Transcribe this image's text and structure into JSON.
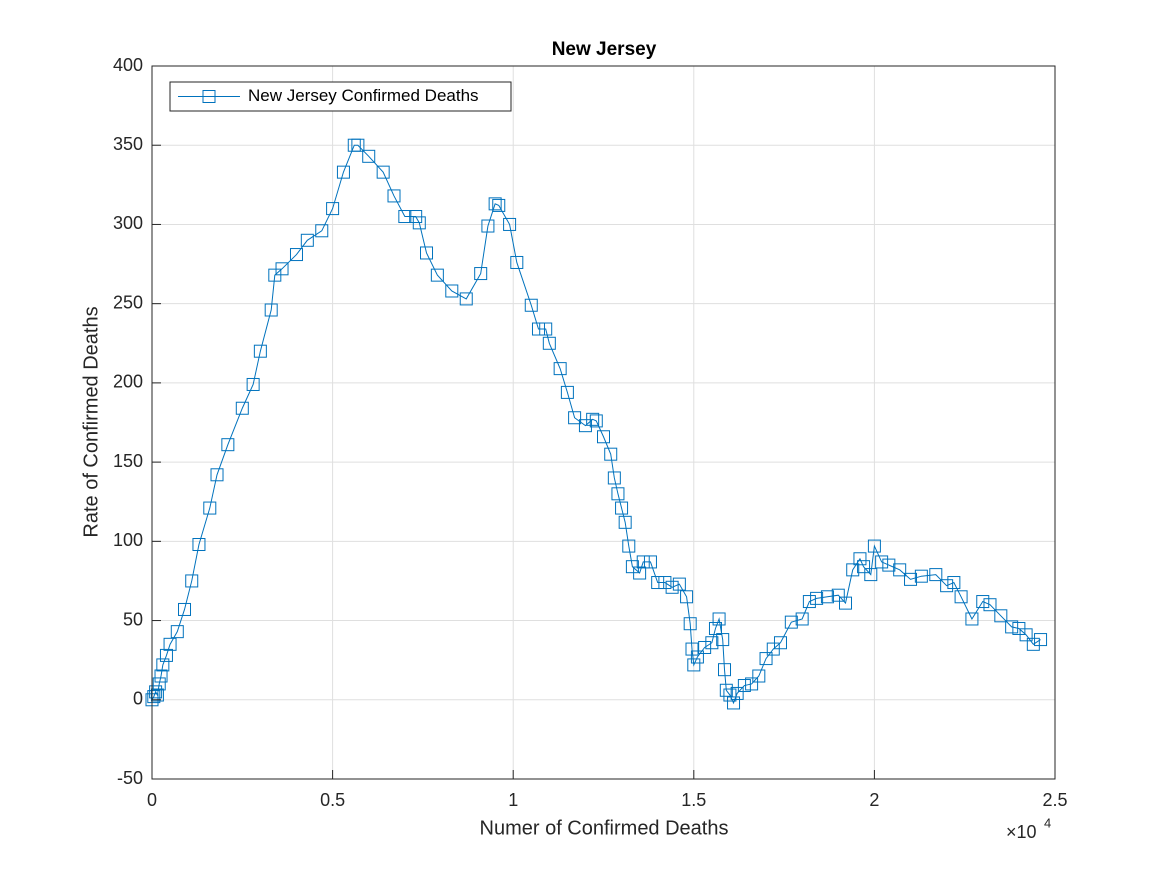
{
  "chart_data": {
    "type": "line",
    "title": "New Jersey",
    "x_label": "Numer of Confirmed Deaths",
    "y_label": "Rate of Confirmed Deaths",
    "x_multiplier": {
      "base": "×10",
      "exponent": "4"
    },
    "xlim": [
      0,
      25000
    ],
    "ylim": [
      -50,
      400
    ],
    "xticks": [
      0,
      {
        "value": 5000,
        "label": "0.5"
      },
      {
        "value": 10000,
        "label": "1"
      },
      {
        "value": 15000,
        "label": "1.5"
      },
      {
        "value": 20000,
        "label": "2"
      },
      {
        "value": 25000,
        "label": "2.5"
      }
    ],
    "yticks": [
      -50,
      0,
      50,
      100,
      150,
      200,
      250,
      300,
      350,
      400
    ],
    "grid": true,
    "legend_position": "upper-left",
    "marker": "square",
    "series": [
      {
        "name": "New Jersey Confirmed Deaths",
        "color": "#0072BD",
        "x": [
          0,
          50,
          100,
          150,
          200,
          250,
          300,
          400,
          500,
          700,
          900,
          1100,
          1300,
          1600,
          1800,
          2100,
          2500,
          2800,
          3000,
          3300,
          3400,
          3600,
          4000,
          4300,
          4700,
          5000,
          5300,
          5600,
          5700,
          6000,
          6400,
          6700,
          7000,
          7300,
          7400,
          7600,
          7900,
          8300,
          8700,
          9100,
          9300,
          9500,
          9600,
          9900,
          10100,
          10500,
          10700,
          10900,
          11000,
          11300,
          11500,
          11700,
          12000,
          12200,
          12300,
          12500,
          12700,
          12800,
          12900,
          13000,
          13100,
          13200,
          13300,
          13500,
          13600,
          13800,
          14000,
          14200,
          14400,
          14600,
          14800,
          14900,
          14950,
          15000,
          15100,
          15300,
          15500,
          15600,
          15700,
          15800,
          15850,
          15900,
          16000,
          16100,
          16200,
          16400,
          16600,
          16800,
          17000,
          17200,
          17400,
          17700,
          18000,
          18200,
          18400,
          18700,
          19000,
          19200,
          19400,
          19600,
          19700,
          19900,
          20000,
          20200,
          20400,
          20700,
          21000,
          21300,
          21700,
          22000,
          22200,
          22400,
          22700,
          23000,
          23200,
          23500,
          23800,
          24000,
          24200,
          24400,
          24600
        ],
        "values": [
          0,
          2,
          5,
          3,
          10,
          15,
          22,
          28,
          35,
          43,
          57,
          75,
          98,
          121,
          142,
          161,
          184,
          199,
          220,
          246,
          268,
          272,
          281,
          290,
          296,
          310,
          333,
          350,
          350,
          343,
          333,
          318,
          305,
          305,
          301,
          282,
          268,
          258,
          253,
          269,
          299,
          313,
          312,
          300,
          276,
          249,
          234,
          234,
          225,
          209,
          194,
          178,
          173,
          177,
          176,
          166,
          155,
          140,
          130,
          121,
          112,
          97,
          84,
          80,
          87,
          87,
          74,
          74,
          71,
          73,
          65,
          48,
          32,
          22,
          27,
          33,
          36,
          45,
          51,
          38,
          19,
          6,
          3,
          -2,
          4,
          9,
          10,
          15,
          26,
          32,
          36,
          49,
          51,
          62,
          64,
          65,
          66,
          61,
          82,
          89,
          84,
          79,
          97,
          87,
          85,
          82,
          76,
          78,
          79,
          72,
          74,
          65,
          51,
          62,
          60,
          53,
          46,
          45,
          41,
          35,
          38
        ]
      }
    ]
  }
}
